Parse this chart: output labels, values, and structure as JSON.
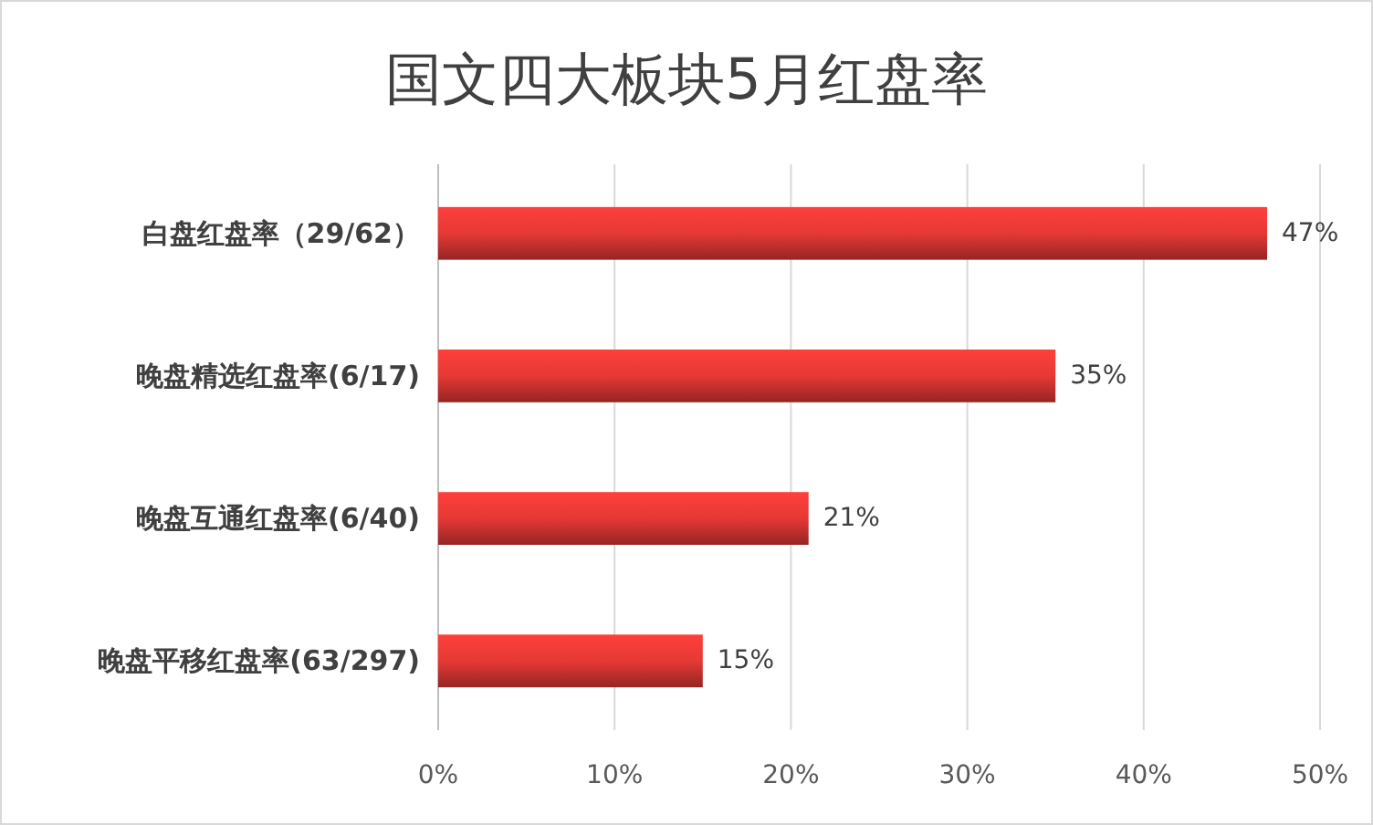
{
  "chart_data": {
    "type": "bar",
    "orientation": "horizontal",
    "title": "国文四大板块5月红盘率",
    "categories": [
      "白盘红盘率（29/62）",
      "晚盘精选红盘率(6/17)",
      "晚盘互通红盘率(6/40)",
      "晚盘平移红盘率(63/297)"
    ],
    "values": [
      47,
      35,
      21,
      15
    ],
    "color": "#e53935",
    "value_labels": [
      "47%",
      "35%",
      "21%",
      "15%"
    ],
    "xlim": [
      0,
      50
    ],
    "xticks": [
      {
        "value": 0,
        "label": "0%"
      },
      {
        "value": 10,
        "label": "10%"
      },
      {
        "value": 20,
        "label": "20%"
      },
      {
        "value": 30,
        "label": "30%"
      },
      {
        "value": 40,
        "label": "40%"
      },
      {
        "value": 50,
        "label": "50%"
      }
    ],
    "grid": "x"
  }
}
